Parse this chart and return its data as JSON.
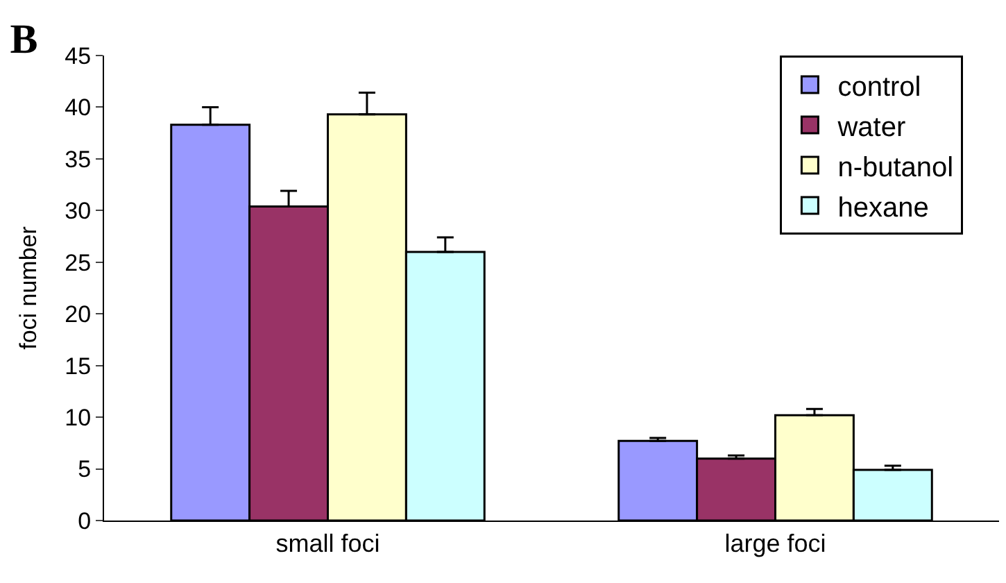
{
  "chart_data": {
    "type": "bar",
    "title": "B",
    "ylabel": "foci number",
    "categories": [
      "small foci",
      "large foci"
    ],
    "series": [
      {
        "name": "control",
        "color": "#9999ff",
        "values": [
          38.3,
          7.7
        ],
        "errors": [
          [
            38.3,
            40.0
          ],
          [
            7.7,
            8.0
          ]
        ]
      },
      {
        "name": "water",
        "color": "#993366",
        "values": [
          30.4,
          6.0
        ],
        "errors": [
          [
            30.4,
            31.9
          ],
          [
            6.0,
            6.3
          ]
        ]
      },
      {
        "name": "n-butanol",
        "color": "#ffffcc",
        "values": [
          39.3,
          10.2
        ],
        "errors": [
          [
            39.3,
            41.4
          ],
          [
            10.2,
            10.8
          ]
        ]
      },
      {
        "name": "hexane",
        "color": "#ccffff",
        "values": [
          26.0,
          4.9
        ],
        "errors": [
          [
            26.0,
            27.4
          ],
          [
            4.9,
            5.3
          ]
        ]
      }
    ],
    "ylim": [
      0,
      45
    ],
    "yticks": [
      0,
      5,
      10,
      15,
      20,
      25,
      30,
      35,
      40,
      45
    ],
    "legend": "top right"
  }
}
